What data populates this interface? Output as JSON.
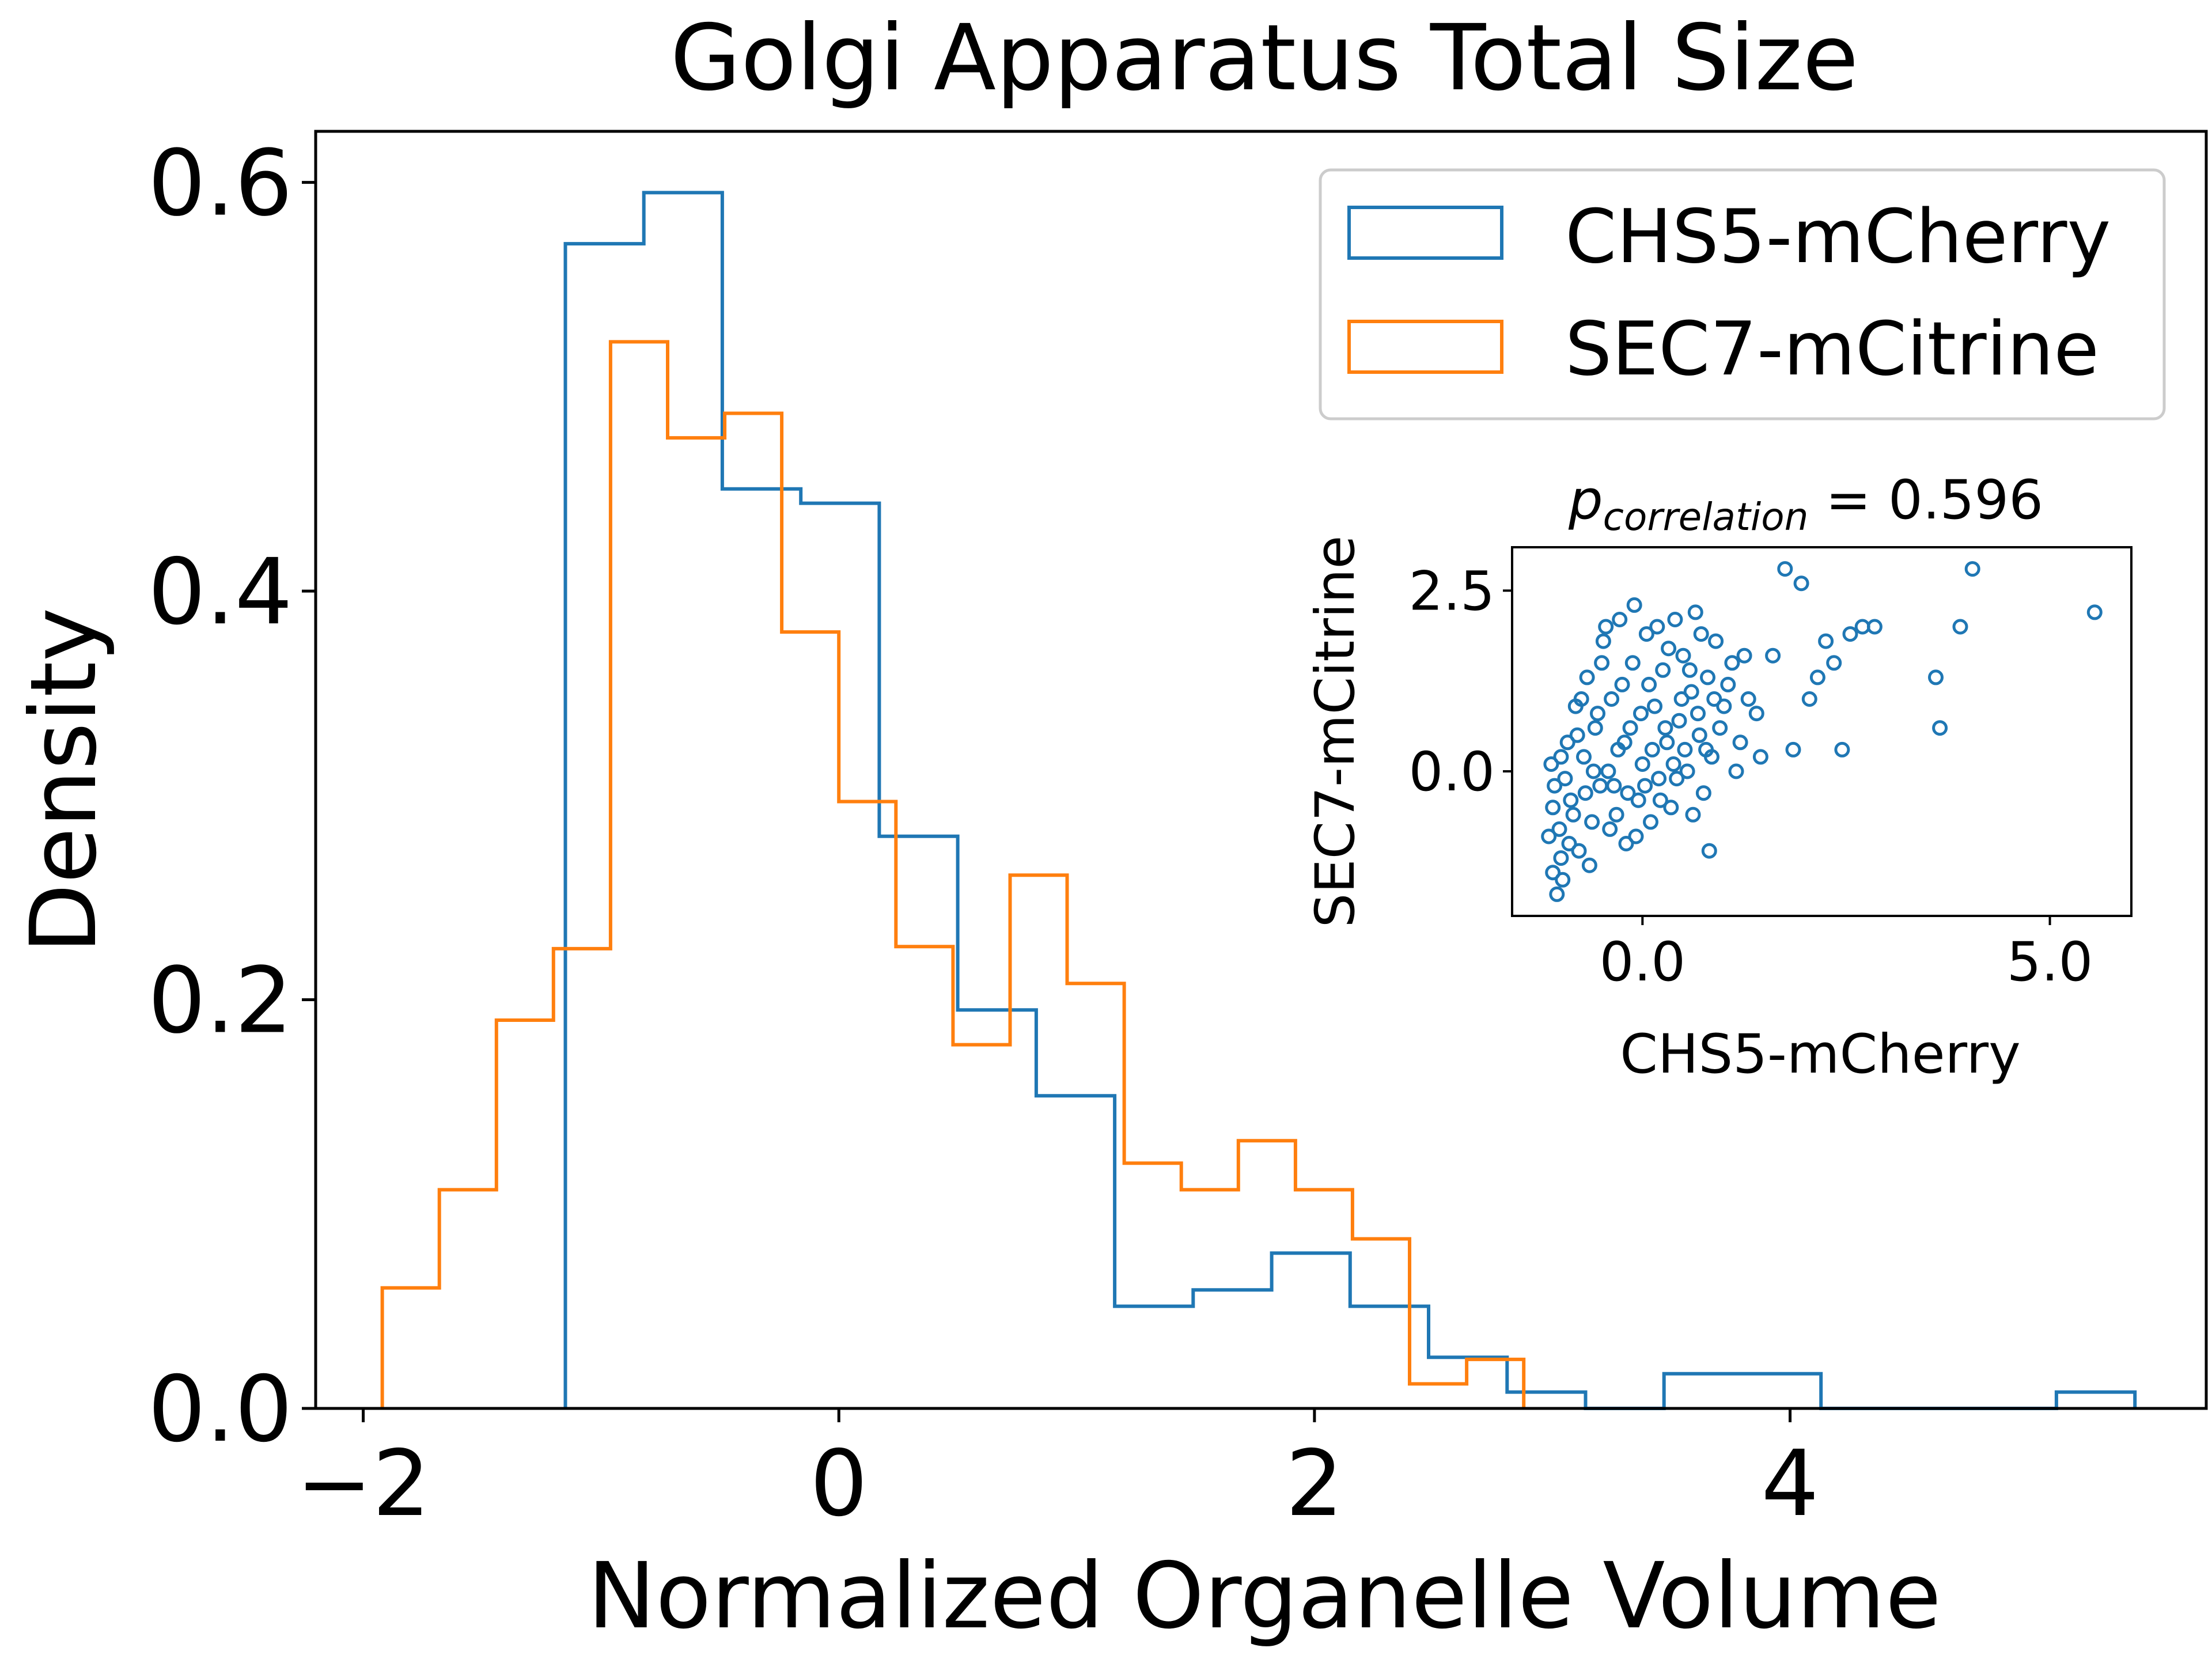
{
  "chart_data": [
    {
      "type": "histogram",
      "title": "Golgi Apparatus Total Size",
      "xlabel": "Normalized Organelle Volume",
      "ylabel": "Density",
      "xlim": [
        -2.2,
        5.75
      ],
      "ylim": [
        0,
        0.625
      ],
      "xticks": [
        -2,
        0,
        2,
        4
      ],
      "xtick_labels": [
        "−2",
        "0",
        "2",
        "4"
      ],
      "yticks": [
        0.0,
        0.2,
        0.4,
        0.6
      ],
      "ytick_labels": [
        "0.0",
        "0.2",
        "0.4",
        "0.6"
      ],
      "grid": false,
      "legend_position": "top-right",
      "series": [
        {
          "name": "CHS5-mCherry",
          "color": "#1f77b4",
          "histtype": "step",
          "bin_edges": [
            -1.15,
            -0.82,
            -0.49,
            -0.16,
            0.17,
            0.5,
            0.83,
            1.16,
            1.49,
            1.82,
            2.15,
            2.48,
            2.81,
            3.14,
            3.47,
            3.8,
            4.13,
            4.46,
            4.79,
            5.12,
            5.45
          ],
          "density": [
            0.57,
            0.595,
            0.45,
            0.443,
            0.28,
            0.195,
            0.153,
            0.05,
            0.058,
            0.076,
            0.05,
            0.025,
            0.008,
            0.0,
            0.017,
            0.017,
            0.0,
            0.0,
            0.0,
            0.008
          ]
        },
        {
          "name": "SEC7-mCitrine",
          "color": "#ff7f0e",
          "histtype": "step",
          "bin_edges": [
            -1.92,
            -1.68,
            -1.44,
            -1.2,
            -0.96,
            -0.72,
            -0.48,
            -0.24,
            0.0,
            0.24,
            0.48,
            0.72,
            0.96,
            1.2,
            1.44,
            1.68,
            1.92,
            2.16,
            2.4,
            2.64,
            2.88
          ],
          "density": [
            0.059,
            0.107,
            0.19,
            0.225,
            0.522,
            0.475,
            0.487,
            0.38,
            0.297,
            0.226,
            0.178,
            0.261,
            0.208,
            0.12,
            0.107,
            0.131,
            0.107,
            0.083,
            0.012,
            0.024
          ]
        }
      ]
    },
    {
      "type": "scatter",
      "title_main": "p",
      "title_sub": "correlation",
      "title_rest": " = 0.596",
      "xlabel": "CHS5-mCherry",
      "ylabel": "SEC7-mCitrine",
      "xlim": [
        -1.6,
        6.0
      ],
      "ylim": [
        -2.0,
        3.1
      ],
      "xticks": [
        0.0,
        5.0
      ],
      "xtick_labels": [
        "0.0",
        "5.0"
      ],
      "yticks": [
        0.0,
        2.5
      ],
      "ytick_labels": [
        "0.0",
        "2.5"
      ],
      "marker": "open-circle",
      "color": "#1f77b4",
      "points": [
        [
          -1.15,
          -0.9
        ],
        [
          -1.1,
          -1.4
        ],
        [
          -1.05,
          -1.7
        ],
        [
          -1.0,
          -1.2
        ],
        [
          -1.1,
          -0.5
        ],
        [
          -1.0,
          0.2
        ],
        [
          -0.95,
          -0.1
        ],
        [
          -0.9,
          -1.0
        ],
        [
          -0.85,
          -0.6
        ],
        [
          -0.8,
          0.5
        ],
        [
          -0.75,
          1.0
        ],
        [
          -0.7,
          -0.3
        ],
        [
          -0.65,
          -1.3
        ],
        [
          -0.6,
          0.0
        ],
        [
          -0.55,
          0.8
        ],
        [
          -0.5,
          1.5
        ],
        [
          -0.45,
          2.0
        ],
        [
          -0.4,
          -0.8
        ],
        [
          -0.35,
          -0.2
        ],
        [
          -0.3,
          0.3
        ],
        [
          -0.25,
          1.2
        ],
        [
          -0.2,
          -1.0
        ],
        [
          -0.15,
          0.6
        ],
        [
          -0.1,
          2.3
        ],
        [
          -0.05,
          -0.4
        ],
        [
          0.0,
          0.1
        ],
        [
          0.05,
          1.9
        ],
        [
          0.1,
          -0.7
        ],
        [
          0.15,
          0.9
        ],
        [
          0.2,
          -0.1
        ],
        [
          0.25,
          1.4
        ],
        [
          0.3,
          0.4
        ],
        [
          0.35,
          -0.5
        ],
        [
          0.4,
          2.1
        ],
        [
          0.45,
          0.7
        ],
        [
          0.5,
          1.6
        ],
        [
          0.55,
          0.0
        ],
        [
          0.6,
          1.1
        ],
        [
          0.65,
          2.2
        ],
        [
          0.7,
          0.5
        ],
        [
          0.75,
          -0.3
        ],
        [
          0.8,
          1.3
        ],
        [
          0.85,
          0.2
        ],
        [
          0.9,
          1.8
        ],
        [
          1.0,
          0.9
        ],
        [
          1.1,
          1.5
        ],
        [
          1.2,
          0.4
        ],
        [
          1.3,
          1.0
        ],
        [
          1.45,
          0.2
        ],
        [
          1.6,
          1.6
        ],
        [
          1.75,
          2.8
        ],
        [
          1.85,
          0.3
        ],
        [
          1.95,
          2.6
        ],
        [
          2.05,
          1.0
        ],
        [
          2.15,
          1.3
        ],
        [
          2.25,
          1.8
        ],
        [
          2.35,
          1.5
        ],
        [
          2.45,
          0.3
        ],
        [
          2.55,
          1.9
        ],
        [
          2.7,
          2.0
        ],
        [
          2.85,
          2.0
        ],
        [
          3.6,
          1.3
        ],
        [
          3.65,
          0.6
        ],
        [
          3.9,
          2.0
        ],
        [
          4.05,
          2.8
        ],
        [
          5.55,
          2.2
        ],
        [
          -1.12,
          0.1
        ],
        [
          -1.08,
          -0.2
        ],
        [
          -1.02,
          -0.8
        ],
        [
          -0.98,
          -1.5
        ],
        [
          -0.92,
          0.4
        ],
        [
          -0.88,
          -0.4
        ],
        [
          -0.82,
          0.9
        ],
        [
          -0.78,
          -1.1
        ],
        [
          -0.72,
          0.2
        ],
        [
          -0.68,
          1.3
        ],
        [
          -0.62,
          -0.7
        ],
        [
          -0.58,
          0.6
        ],
        [
          -0.52,
          -0.2
        ],
        [
          -0.48,
          1.8
        ],
        [
          -0.42,
          0.0
        ],
        [
          -0.38,
          1.0
        ],
        [
          -0.32,
          -0.6
        ],
        [
          -0.28,
          2.1
        ],
        [
          -0.22,
          0.4
        ],
        [
          -0.18,
          -0.3
        ],
        [
          -0.12,
          1.5
        ],
        [
          -0.08,
          -0.9
        ],
        [
          -0.02,
          0.8
        ],
        [
          0.03,
          -0.2
        ],
        [
          0.08,
          1.2
        ],
        [
          0.12,
          0.3
        ],
        [
          0.18,
          2.0
        ],
        [
          0.22,
          -0.4
        ],
        [
          0.28,
          0.6
        ],
        [
          0.32,
          1.7
        ],
        [
          0.38,
          0.1
        ],
        [
          0.42,
          -0.1
        ],
        [
          0.48,
          1.0
        ],
        [
          0.52,
          0.3
        ],
        [
          0.58,
          1.4
        ],
        [
          0.62,
          -0.6
        ],
        [
          0.68,
          0.8
        ],
        [
          0.72,
          1.9
        ],
        [
          0.78,
          0.3
        ],
        [
          0.82,
          -1.1
        ],
        [
          0.88,
          1.0
        ],
        [
          0.95,
          0.6
        ],
        [
          1.05,
          1.2
        ],
        [
          1.15,
          0.0
        ],
        [
          1.25,
          1.6
        ],
        [
          1.4,
          0.8
        ]
      ]
    }
  ],
  "legend": {
    "items": [
      {
        "label": "CHS5-mCherry",
        "color": "#1f77b4"
      },
      {
        "label": "SEC7-mCitrine",
        "color": "#ff7f0e"
      }
    ]
  }
}
